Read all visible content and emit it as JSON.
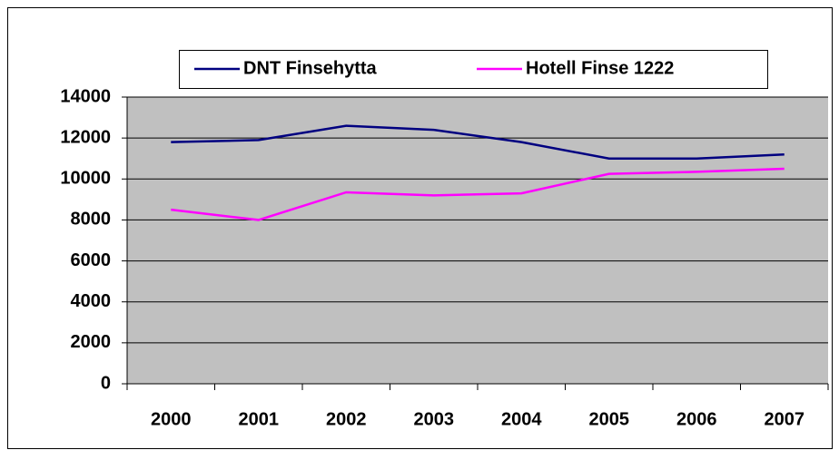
{
  "chart_data": {
    "type": "line",
    "categories": [
      "2000",
      "2001",
      "2002",
      "2003",
      "2004",
      "2005",
      "2006",
      "2007"
    ],
    "series": [
      {
        "name": "DNT Finsehytta",
        "color": "#000080",
        "values": [
          11800,
          11900,
          12600,
          12400,
          11800,
          11000,
          11000,
          11200
        ]
      },
      {
        "name": "Hotell Finse 1222",
        "color": "#ff00ff",
        "values": [
          8500,
          8000,
          9350,
          9200,
          9300,
          10250,
          10350,
          10500
        ]
      }
    ],
    "ylim": [
      0,
      14000
    ],
    "yticks": [
      0,
      2000,
      4000,
      6000,
      8000,
      10000,
      12000,
      14000
    ],
    "grid": true,
    "legend": "top"
  }
}
